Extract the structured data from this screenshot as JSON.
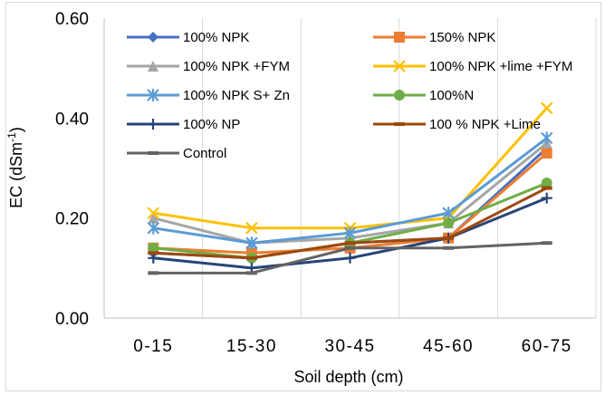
{
  "chart_data": {
    "type": "line",
    "xlabel": "Soil depth (cm)",
    "ylabel": "EC (dSm-1)",
    "ylabel_main": "EC (dSm",
    "ylabel_sup": "-1",
    "ylabel_close": ")",
    "categories": [
      "0-15",
      "15-30",
      "30-45",
      "45-60",
      "60-75"
    ],
    "yticks": [
      "0.00",
      "0.20",
      "0.40",
      "0.60"
    ],
    "ylim": [
      0,
      0.6
    ],
    "grid": "vertical",
    "legend_position": "top",
    "series": [
      {
        "name": "100% NPK",
        "color": "#4472c4",
        "marker": "diamond",
        "values": [
          0.13,
          0.12,
          0.15,
          0.16,
          0.34
        ]
      },
      {
        "name": "150% NPK",
        "color": "#ed7d31",
        "marker": "square",
        "values": [
          0.14,
          0.13,
          0.14,
          0.16,
          0.33
        ]
      },
      {
        "name": "100% NPK +FYM",
        "color": "#a5a5a5",
        "marker": "triangle",
        "values": [
          0.2,
          0.15,
          0.16,
          0.19,
          0.35
        ]
      },
      {
        "name": "100% NPK +lime +FYM",
        "color": "#ffc000",
        "marker": "x",
        "values": [
          0.21,
          0.18,
          0.18,
          0.2,
          0.42
        ]
      },
      {
        "name": "100% NPK S+ Zn",
        "color": "#5b9bd5",
        "marker": "star",
        "values": [
          0.18,
          0.15,
          0.17,
          0.21,
          0.36
        ]
      },
      {
        "name": "100%N",
        "color": "#70ad47",
        "marker": "circle",
        "values": [
          0.14,
          0.12,
          0.15,
          0.19,
          0.27
        ]
      },
      {
        "name": "100% NP",
        "color": "#264478",
        "marker": "plus",
        "values": [
          0.12,
          0.1,
          0.12,
          0.16,
          0.24
        ]
      },
      {
        "name": "100 % NPK +Lime",
        "color": "#9e480e",
        "marker": "dash",
        "values": [
          0.13,
          0.12,
          0.15,
          0.16,
          0.26
        ]
      },
      {
        "name": "Control",
        "color": "#636363",
        "marker": "dash",
        "values": [
          0.09,
          0.09,
          0.14,
          0.14,
          0.15
        ]
      }
    ]
  }
}
